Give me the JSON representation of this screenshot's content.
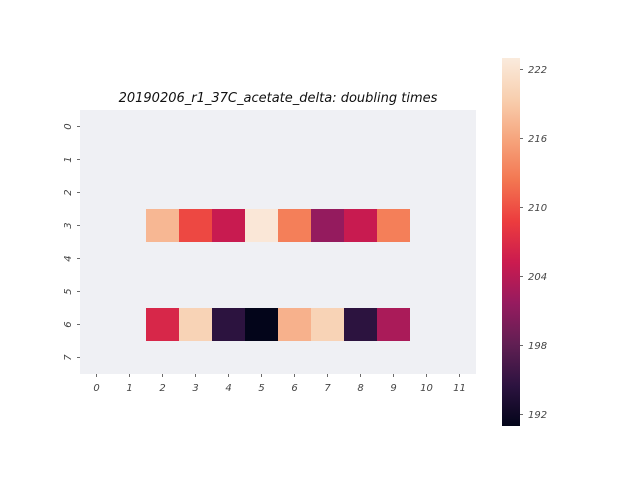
{
  "chart_data": {
    "type": "heatmap",
    "title": "20190206_r1_37C_acetate_delta: doubling times",
    "xlabel": "",
    "ylabel": "",
    "x_ticks": [
      "0",
      "1",
      "2",
      "3",
      "4",
      "5",
      "6",
      "7",
      "8",
      "9",
      "10",
      "11"
    ],
    "y_ticks": [
      "0",
      "1",
      "2",
      "3",
      "4",
      "5",
      "6",
      "7"
    ],
    "rows": 8,
    "cols": 12,
    "missing_color": "#eff0f4",
    "colormap": [
      "#03051a",
      "#2d1340",
      "#611f53",
      "#961b5f",
      "#cb1b4f",
      "#ec3c3e",
      "#f37651",
      "#f6a47c",
      "#f8cfaf",
      "#faebdd"
    ],
    "colorbar": {
      "min": 191,
      "max": 223,
      "ticks": [
        192,
        198,
        204,
        210,
        216,
        222
      ]
    },
    "values": [
      [
        null,
        null,
        null,
        null,
        null,
        null,
        null,
        null,
        null,
        null,
        null,
        null
      ],
      [
        null,
        null,
        null,
        null,
        null,
        null,
        null,
        null,
        null,
        null,
        null,
        null
      ],
      [
        null,
        null,
        null,
        null,
        null,
        null,
        null,
        null,
        null,
        null,
        null,
        null
      ],
      [
        null,
        null,
        217.5,
        209.5,
        205.0,
        222.5,
        213.0,
        201.5,
        205.0,
        213.0,
        null,
        null
      ],
      [
        null,
        null,
        null,
        null,
        null,
        null,
        null,
        null,
        null,
        null,
        null,
        null
      ],
      [
        null,
        null,
        null,
        null,
        null,
        null,
        null,
        null,
        null,
        null,
        null,
        null
      ],
      [
        null,
        null,
        206.5,
        220.0,
        194.5,
        191.0,
        217.0,
        220.0,
        194.5,
        203.0,
        null,
        null
      ],
      [
        null,
        null,
        null,
        null,
        null,
        null,
        null,
        null,
        null,
        null,
        null,
        null
      ]
    ],
    "grid": false
  }
}
